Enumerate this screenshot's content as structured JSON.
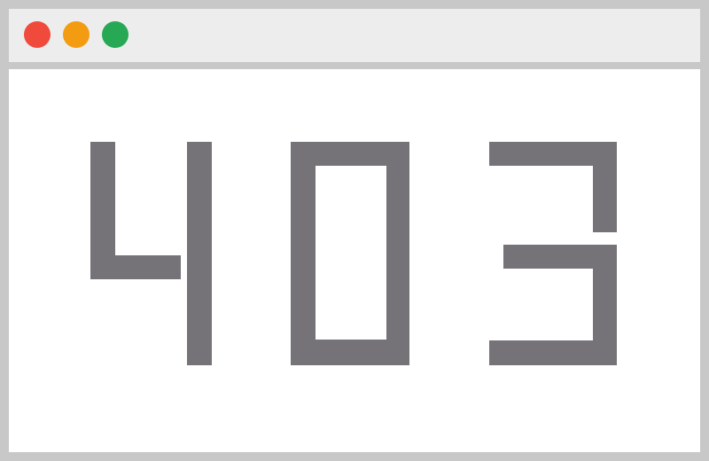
{
  "window": {
    "controls": [
      {
        "name": "close-button",
        "color": "#f04a3c"
      },
      {
        "name": "minimize-button",
        "color": "#f39c12"
      },
      {
        "name": "maximize-button",
        "color": "#27a855"
      }
    ]
  },
  "error": {
    "code": "403",
    "digit_color": "#767378"
  }
}
